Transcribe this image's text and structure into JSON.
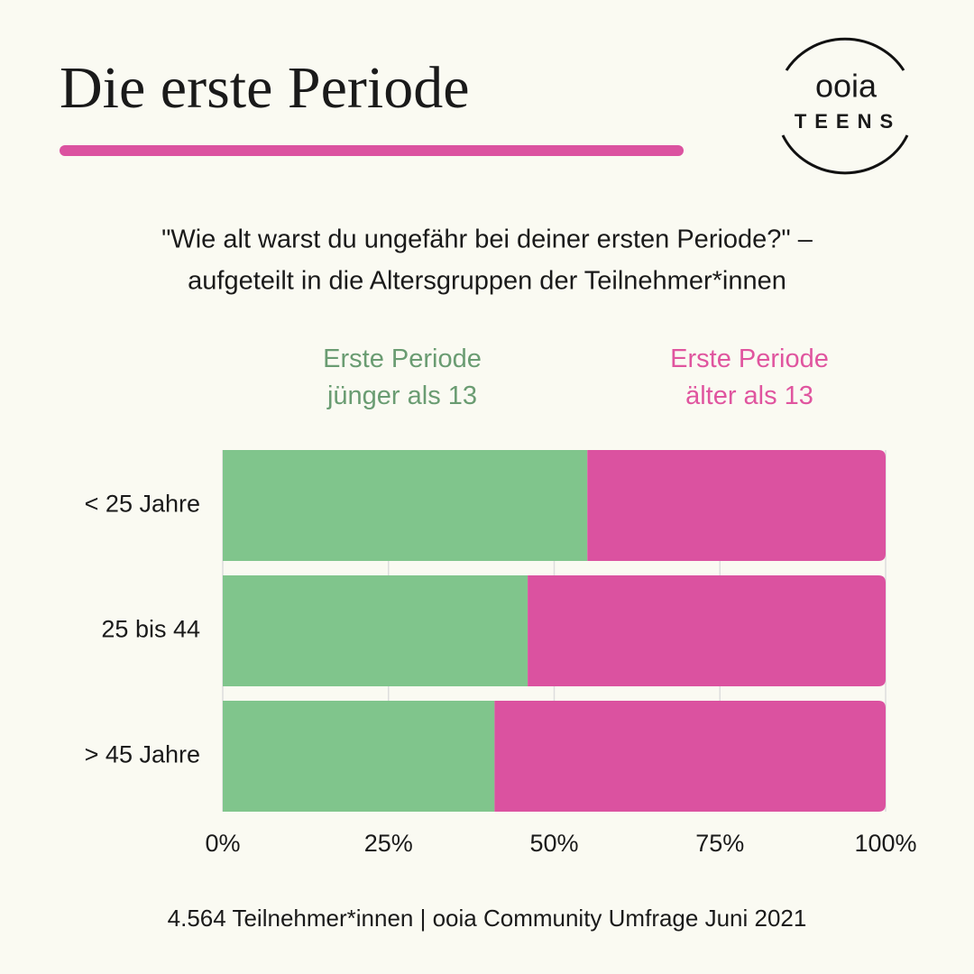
{
  "title": "Die erste Periode",
  "logo": {
    "name": "ooia",
    "tag": "TEENS"
  },
  "subtitle": [
    "\"Wie alt warst du ungefähr bei deiner ersten Periode?\"  –",
    "aufgeteilt in die Altersgruppen der Teilnehmer*innen"
  ],
  "chart_data": {
    "type": "stacked-barh",
    "categories": [
      "< 25 Jahre",
      "25 bis 44",
      "> 45 Jahre"
    ],
    "series": [
      {
        "name": "Erste Periode jünger als 13",
        "color": "#80c58c",
        "label_color": "#6a9c72",
        "values": [
          55,
          46,
          41
        ]
      },
      {
        "name": "Erste Periode älter als 13",
        "color": "#db52a0",
        "label_color": "#e0559f",
        "values": [
          45,
          54,
          59
        ]
      }
    ],
    "xlim": [
      0,
      100
    ],
    "xticks": [
      {
        "value": 0,
        "label": "0%"
      },
      {
        "value": 25,
        "label": "25%"
      },
      {
        "value": 50,
        "label": "50%"
      },
      {
        "value": 75,
        "label": "75%"
      },
      {
        "value": 100,
        "label": "100%"
      }
    ],
    "grid": true
  },
  "footer": "4.564 Teilnehmer*innen | ooia Community Umfrage Juni 2021"
}
